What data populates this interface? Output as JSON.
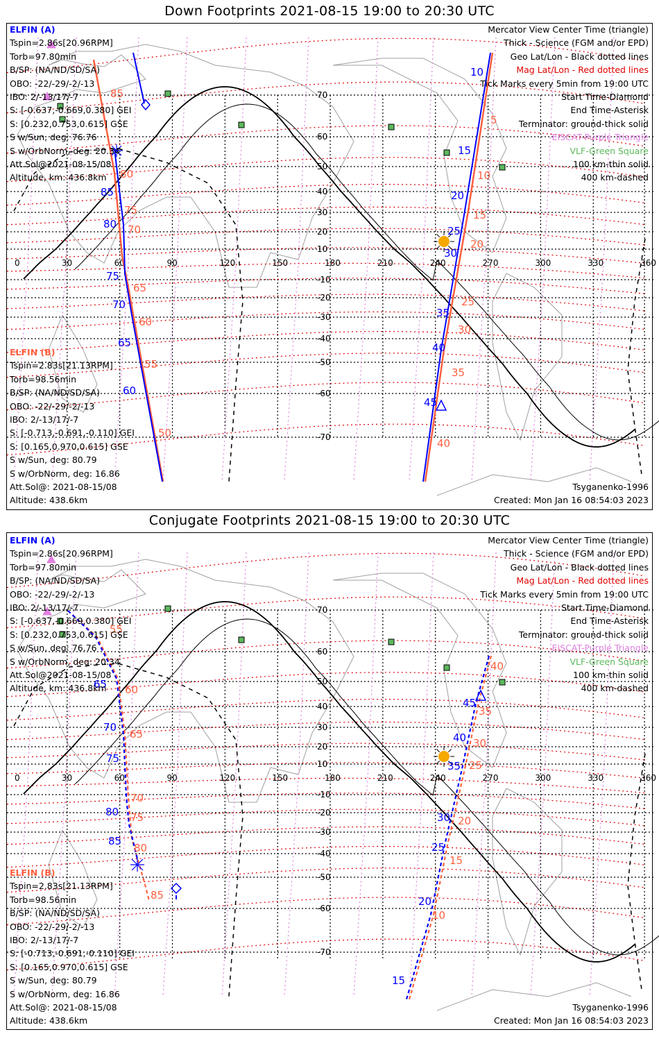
{
  "colors": {
    "elfin_a": "#0000ff",
    "elfin_b": "#ff6040",
    "mag_grid": "#e00000",
    "geo_grid": "#000000",
    "eiscat": "#e080e0",
    "vlf": "#5cb85c",
    "sun": "#f5a800",
    "coast": "#a0a0a0"
  },
  "legend": [
    {
      "text": "Mercator View Center Time (triangle)",
      "color": "#000000"
    },
    {
      "text": "Thick - Science (FGM and/or EPD)",
      "color": "#000000"
    },
    {
      "text": "Geo Lat/Lon - Black dotted lines",
      "color": "#000000"
    },
    {
      "text": "Mag Lat/Lon - Red dotted lines",
      "color": "#e00000"
    },
    {
      "text": "Tick Marks every 5min from 19:00 UTC",
      "color": "#000000"
    },
    {
      "text": "Start Time-Diamond",
      "color": "#000000"
    },
    {
      "text": "End Time-Asterisk",
      "color": "#000000"
    },
    {
      "text": "Terminator: ground-thick solid",
      "color": "#000000"
    },
    {
      "text": "EISCAT-Purple Triangle",
      "color": "#e080e0"
    },
    {
      "text": "VLF-Green Square",
      "color": "#5cb85c"
    },
    {
      "text": "100 km-thin solid",
      "color": "#000000"
    },
    {
      "text": "400 km-dashed",
      "color": "#000000"
    }
  ],
  "elfin_a": {
    "header": "ELFIN (A)",
    "lines": [
      "Tspin=2.86s[20.96RPM]",
      "Torb=97.80min",
      "B/SP: (NA/ND/SD/SA)",
      "OBO: -22/-29/-2/-13",
      "IBO: 2/-13/17/-7",
      "S: [-0.637,-0.669,0.380] GEI",
      "S: [0.232,0.753,0.615] GSE",
      "S w/Sun, deg: 76.76",
      "S w/OrbNorm, deg: 20.34",
      "Att.Sol@2021-08-15/08",
      "Altitude, km: 436.8km"
    ]
  },
  "elfin_b": {
    "header": "ELFIN (B)",
    "lines": [
      "Tspin=2.83s[21.13RPM]",
      "Torb=98.56min",
      "B/SP: (NA/ND/SD/SA)",
      "OBO: -22/-29/-2/-13",
      "IBO: 2/-13/17/-7",
      "S: [-0.713,-0.691,-0.110] GEI",
      "S: [0.165,0.970,0.615] GSE",
      "S w/Sun, deg: 80.79",
      "S w/OrbNorm, deg: 16.86",
      "Att.Sol@: 2021-08-15/08",
      "Altitude: 438.6km"
    ]
  },
  "footer": {
    "model": "Tsyganenko-1996",
    "created": "Created: Mon Jan 16 08:54:03 2023"
  },
  "panels": [
    {
      "title": "Down Footprints 2021-08-15 19:00 to 20:30 UTC",
      "lon_ticks": [
        "0",
        "30",
        "60",
        "90",
        "120",
        "150",
        "180",
        "210",
        "240",
        "270",
        "300",
        "330",
        "360"
      ],
      "lat_ticks": [
        "70",
        "60",
        "50",
        "40",
        "30",
        "20",
        "10",
        "-10",
        "-20",
        "-30",
        "-40",
        "-50",
        "-60",
        "-70"
      ],
      "tracks": {
        "a_left_ticks": [
          "85",
          "80",
          "75",
          "70",
          "65",
          "60"
        ],
        "b_left_ticks": [
          "85",
          "80",
          "75",
          "70",
          "65",
          "60",
          "55",
          "50"
        ],
        "a_right_ticks": [
          "10",
          "15",
          "20",
          "25",
          "30",
          "35",
          "40",
          "45"
        ],
        "b_right_ticks": [
          "5",
          "10",
          "15",
          "20",
          "25",
          "30",
          "35",
          "40"
        ]
      }
    },
    {
      "title": "Conjugate Footprints 2021-08-15 19:00 to 20:30 UTC",
      "lon_ticks": [
        "0",
        "30",
        "60",
        "90",
        "120",
        "150",
        "180",
        "210",
        "240",
        "270",
        "300",
        "330",
        "360"
      ],
      "lat_ticks": [
        "70",
        "60",
        "50",
        "40",
        "30",
        "20",
        "10",
        "-10",
        "-20",
        "-30",
        "-40",
        "-50",
        "-60",
        "-70"
      ],
      "tracks": {
        "a_left_ticks": [
          "65",
          "70",
          "75",
          "80",
          "85"
        ],
        "b_left_ticks": [
          "55",
          "60",
          "65",
          "70",
          "75",
          "80",
          "85"
        ],
        "a_right_ticks": [
          "45",
          "40",
          "35",
          "30",
          "25",
          "20",
          "15"
        ],
        "b_right_ticks": [
          "40",
          "35",
          "30",
          "25",
          "20",
          "15",
          "10"
        ]
      }
    }
  ]
}
